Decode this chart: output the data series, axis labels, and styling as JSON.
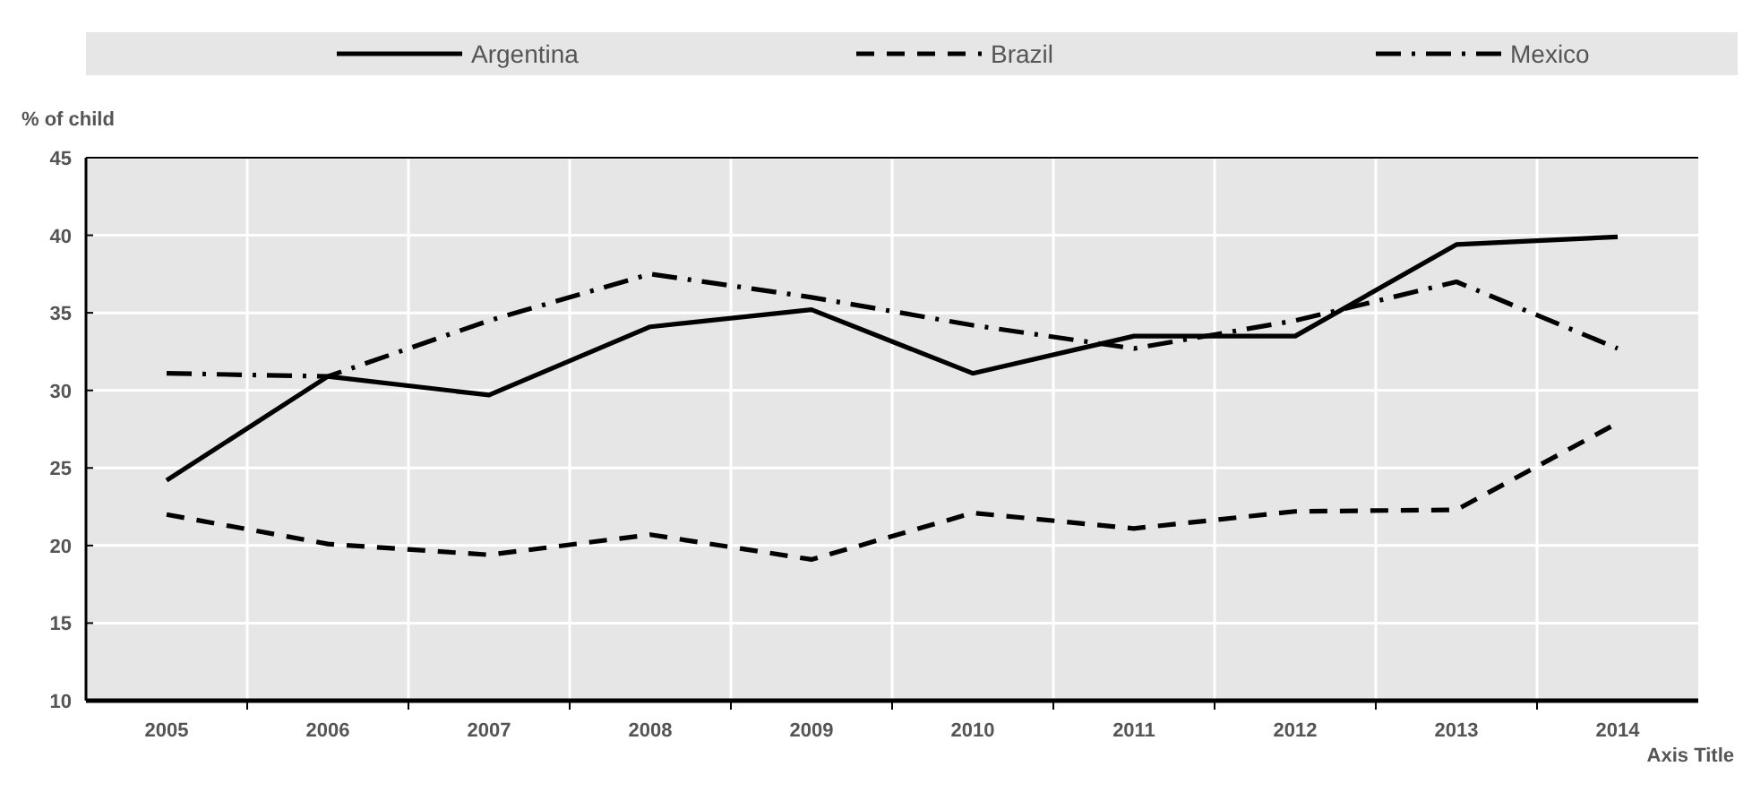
{
  "chart_data": {
    "type": "line",
    "ylabel": "% of child",
    "xlabel": "Axis Title",
    "categories": [
      "2005",
      "2006",
      "2007",
      "2008",
      "2009",
      "2010",
      "2011",
      "2012",
      "2013",
      "2014"
    ],
    "series": [
      {
        "name": "Argentina",
        "color": "#000000",
        "line_style": "solid",
        "values": [
          24.2,
          30.9,
          29.7,
          34.1,
          35.2,
          31.1,
          33.5,
          33.5,
          39.4,
          39.9
        ]
      },
      {
        "name": "Brazil",
        "color": "#000000",
        "line_style": "dashed",
        "values": [
          22.0,
          20.1,
          19.4,
          20.7,
          19.1,
          22.1,
          21.1,
          22.2,
          22.3,
          27.9
        ]
      },
      {
        "name": "Mexico",
        "color": "#000000",
        "line_style": "dashdot",
        "values": [
          31.1,
          30.9,
          34.5,
          37.5,
          36.0,
          34.2,
          32.7,
          34.5,
          37.0,
          32.7
        ]
      }
    ],
    "ylim": [
      10,
      45
    ],
    "yticks": [
      10,
      15,
      20,
      25,
      30,
      35,
      40,
      45
    ],
    "grid": true,
    "legend": "top",
    "marker": "none"
  }
}
